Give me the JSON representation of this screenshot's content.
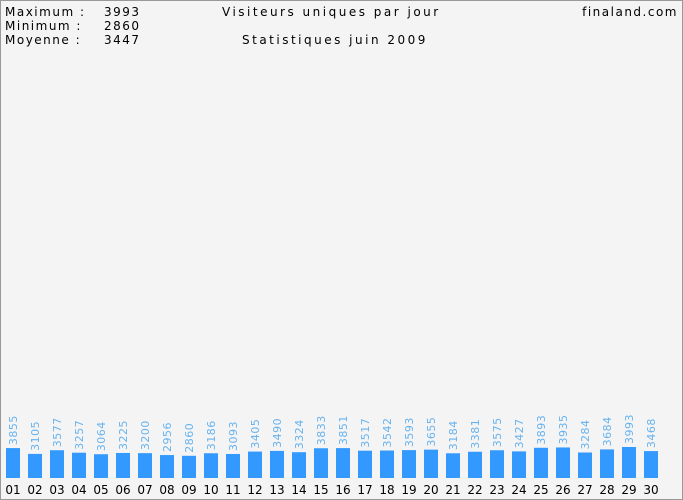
{
  "chart_data": {
    "type": "bar",
    "title": "Visiteurs uniques par jour",
    "subtitle": "Statistiques juin 2009",
    "site": "finaland.com",
    "stats": [
      {
        "label": "Maximum :",
        "value": 3993
      },
      {
        "label": "Minimum :",
        "value": 2860
      },
      {
        "label": "Moyenne :",
        "value": 3447
      }
    ],
    "categories": [
      "01",
      "02",
      "03",
      "04",
      "05",
      "06",
      "07",
      "08",
      "09",
      "10",
      "11",
      "12",
      "13",
      "14",
      "15",
      "16",
      "17",
      "18",
      "19",
      "20",
      "21",
      "22",
      "23",
      "24",
      "25",
      "26",
      "27",
      "28",
      "29",
      "30"
    ],
    "values": [
      3855,
      3105,
      3577,
      3257,
      3064,
      3225,
      3200,
      2956,
      2860,
      3186,
      3093,
      3405,
      3490,
      3324,
      3833,
      3851,
      3517,
      3542,
      3593,
      3655,
      3184,
      3381,
      3575,
      3427,
      3893,
      3935,
      3284,
      3684,
      3993,
      3468
    ],
    "color": "#3399ff",
    "label_color": "#66b3f0"
  }
}
